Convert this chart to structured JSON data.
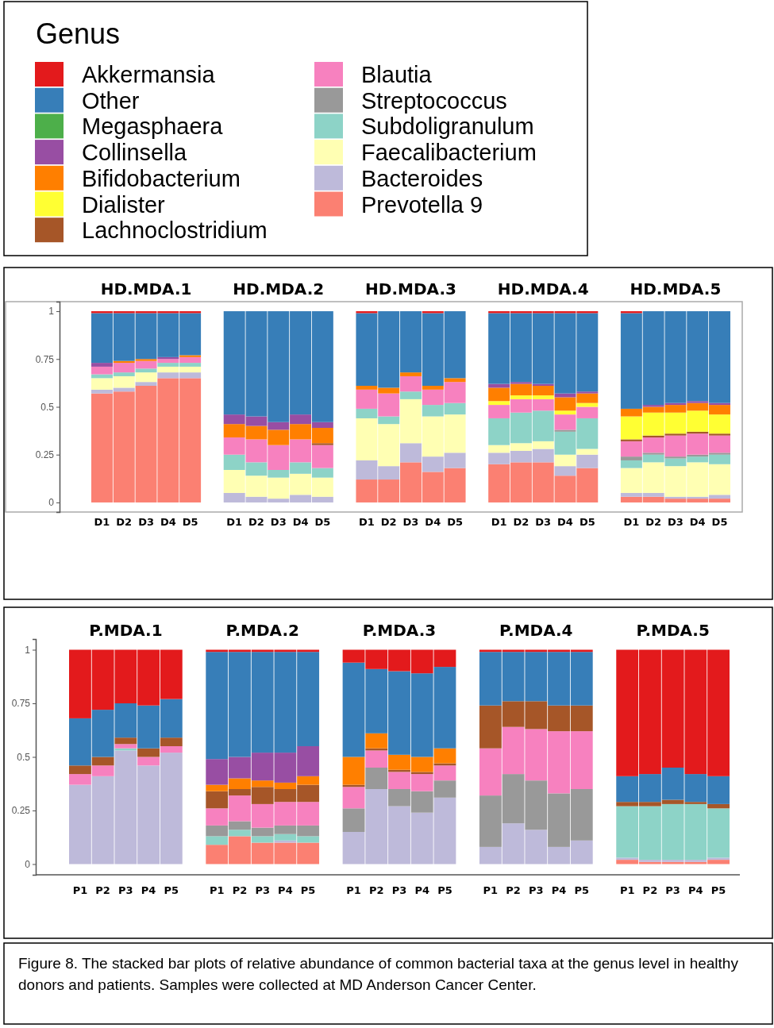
{
  "chart_data": [
    {
      "type": "bar",
      "categories": [
        "D1",
        "D2",
        "D3",
        "D4",
        "D5",
        null,
        "D1",
        "D2",
        "D3",
        "D4",
        "D5",
        null,
        "D1",
        "D2",
        "D3",
        "D4",
        "D5",
        null,
        "D1",
        "D2",
        "D3",
        "D4",
        "D5",
        null,
        "D1",
        "D2",
        "D3",
        "D4",
        "D5"
      ],
      "stacked": true,
      "ylim": [
        -0.05,
        1.05
      ],
      "yticks": [
        0,
        0.25,
        0.5,
        0.75,
        1
      ],
      "legend": "top",
      "legend_title": "Genus",
      "annotations": [
        "HD.MDA.1",
        "HD.MDA.2",
        "HD.MDA.3",
        "HD.MDA.4",
        "HD.MDA.5"
      ],
      "series": [
        {
          "name": "Prevotella 9",
          "color": "#fb8072",
          "values": [
            0.57,
            0.58,
            0.61,
            0.65,
            0.65,
            null,
            0,
            0,
            0,
            0,
            0,
            null,
            0.12,
            0.12,
            0.21,
            0.16,
            0.18,
            null,
            0.2,
            0.21,
            0.21,
            0.14,
            0.18,
            null,
            0.03,
            0.03,
            0.02,
            0.02,
            0.02
          ]
        },
        {
          "name": "Bacteroides",
          "color": "#bebada",
          "values": [
            0.02,
            0.02,
            0.02,
            0.03,
            0.03,
            null,
            0.05,
            0.03,
            0.02,
            0.04,
            0.03,
            null,
            0.1,
            0.07,
            0.1,
            0.08,
            0.08,
            null,
            0.06,
            0.06,
            0.07,
            0.05,
            0.07,
            null,
            0.02,
            0.02,
            0.01,
            0.01,
            0.02
          ]
        },
        {
          "name": "Faecalibacterium",
          "color": "#ffffb3",
          "values": [
            0.06,
            0.06,
            0.05,
            0.03,
            0.03,
            null,
            0.12,
            0.11,
            0.11,
            0.11,
            0.1,
            null,
            0.22,
            0.22,
            0.23,
            0.21,
            0.2,
            null,
            0.04,
            0.04,
            0.04,
            0.06,
            0.03,
            null,
            0.13,
            0.16,
            0.16,
            0.18,
            0.16
          ]
        },
        {
          "name": "Subdoligranulum",
          "color": "#8dd3c7",
          "values": [
            0.02,
            0.02,
            0.02,
            0.02,
            0.02,
            null,
            0.08,
            0.07,
            0.04,
            0.06,
            0.05,
            null,
            0.05,
            0.04,
            0.04,
            0.06,
            0.06,
            null,
            0.14,
            0.16,
            0.16,
            0.12,
            0.16,
            null,
            0.04,
            0.04,
            0.04,
            0.03,
            0.05
          ]
        },
        {
          "name": "Streptococcus",
          "color": "#999999",
          "values": [
            0,
            0,
            0,
            0,
            0,
            null,
            0,
            0,
            0,
            0,
            0,
            null,
            0,
            0,
            0,
            0,
            0,
            null,
            0,
            0,
            0,
            0.01,
            0,
            null,
            0.02,
            0.01,
            0.01,
            0.01,
            0.01
          ]
        },
        {
          "name": "Blautia",
          "color": "#f781bf",
          "values": [
            0.04,
            0.05,
            0.04,
            0.02,
            0.03,
            null,
            0.09,
            0.12,
            0.13,
            0.12,
            0.12,
            null,
            0.1,
            0.12,
            0.08,
            0.08,
            0.11,
            null,
            0.07,
            0.07,
            0.06,
            0.08,
            0.06,
            null,
            0.08,
            0.08,
            0.11,
            0.11,
            0.09
          ]
        },
        {
          "name": "Lachnoclostridium",
          "color": "#a65628",
          "values": [
            0,
            0,
            0,
            0,
            0,
            null,
            0,
            0,
            0,
            0,
            0.01,
            null,
            0,
            0,
            0,
            0,
            0,
            null,
            0,
            0,
            0,
            0,
            0,
            null,
            0.01,
            0.01,
            0.01,
            0.01,
            0.01
          ]
        },
        {
          "name": "Dialister",
          "color": "#ffff33",
          "values": [
            0,
            0,
            0,
            0,
            0,
            null,
            0,
            0,
            0,
            0,
            0,
            null,
            0,
            0,
            0,
            0,
            0,
            null,
            0.02,
            0.02,
            0.02,
            0.02,
            0.02,
            null,
            0.12,
            0.12,
            0.11,
            0.11,
            0.1
          ]
        },
        {
          "name": "Bifidobacterium",
          "color": "#ff7f00",
          "values": [
            0,
            0.01,
            0.01,
            0,
            0.01,
            null,
            0.07,
            0.07,
            0.08,
            0.08,
            0.08,
            null,
            0.02,
            0.03,
            0.02,
            0.02,
            0.02,
            null,
            0.07,
            0.06,
            0.05,
            0.07,
            0.05,
            null,
            0.04,
            0.03,
            0.04,
            0.04,
            0.05
          ]
        },
        {
          "name": "Collinsella",
          "color": "#984ea3",
          "values": [
            0.02,
            0,
            0,
            0.01,
            0,
            null,
            0.05,
            0.05,
            0.04,
            0.05,
            0.03,
            null,
            0,
            0,
            0,
            0,
            0,
            null,
            0.02,
            0.01,
            0.01,
            0.02,
            0.01,
            null,
            0,
            0.01,
            0.01,
            0.01,
            0.01
          ]
        },
        {
          "name": "Megasphaera",
          "color": "#4daf4a",
          "values": [
            0,
            0,
            0,
            0,
            0,
            null,
            0,
            0,
            0,
            0,
            0,
            null,
            0,
            0,
            0,
            0,
            0,
            null,
            0,
            0,
            0,
            0,
            0,
            null,
            0,
            0,
            0,
            0,
            0
          ]
        },
        {
          "name": "Other",
          "color": "#377eb8",
          "values": [
            0.26,
            0.25,
            0.24,
            0.23,
            0.22,
            null,
            0.54,
            0.55,
            0.58,
            0.54,
            0.58,
            null,
            0.38,
            0.4,
            0.32,
            0.38,
            0.35,
            null,
            0.37,
            0.36,
            0.37,
            0.42,
            0.41,
            null,
            0.5,
            0.49,
            0.48,
            0.47,
            0.48
          ]
        },
        {
          "name": "Akkermansia",
          "color": "#e31a1c",
          "values": [
            0.01,
            0.01,
            0.01,
            0.01,
            0.01,
            null,
            0,
            0,
            0,
            0,
            0,
            null,
            0.01,
            0,
            0,
            0.01,
            0,
            null,
            0.01,
            0.01,
            0.01,
            0.01,
            0.01,
            null,
            0.01,
            0,
            0,
            0,
            0
          ]
        }
      ]
    },
    {
      "type": "bar",
      "categories": [
        "P1",
        "P2",
        "P3",
        "P4",
        "P5",
        null,
        "P1",
        "P2",
        "P3",
        "P4",
        "P5",
        null,
        "P1",
        "P2",
        "P3",
        "P4",
        "P5",
        null,
        "P1",
        "P2",
        "P3",
        "P4",
        "P5",
        null,
        "P1",
        "P2",
        "P3",
        "P4",
        "P5"
      ],
      "stacked": true,
      "ylim": [
        -0.05,
        1.05
      ],
      "yticks": [
        0,
        0.25,
        0.5,
        0.75,
        1
      ],
      "annotations": [
        "P.MDA.1",
        "P.MDA.2",
        "P.MDA.3",
        "P.MDA.4",
        "P.MDA.5",
        "Figure 8. The stacked bar plots of relative abundance of common bacterial taxa at the genus level in healthy donors and patients. Samples were collected at MD Anderson Cancer Center."
      ],
      "series": [
        {
          "color": "#fb8072",
          "values": [
            0,
            0,
            0,
            0,
            0,
            null,
            0.09,
            0.13,
            0.1,
            0.1,
            0.1,
            null,
            0,
            0,
            0,
            0,
            0,
            null,
            0,
            0,
            0,
            0,
            0,
            null,
            0.02,
            0.01,
            0.01,
            0.01,
            0.02
          ]
        },
        {
          "color": "#bebada",
          "values": [
            0.37,
            0.41,
            0.53,
            0.46,
            0.52,
            null,
            0,
            0,
            0,
            0.01,
            0,
            null,
            0.15,
            0.35,
            0.27,
            0.24,
            0.31,
            null,
            0.08,
            0.19,
            0.16,
            0.08,
            0.11,
            null,
            0.01,
            0.01,
            0.01,
            0.01,
            0.01
          ]
        },
        {
          "color": "#8dd3c7",
          "values": [
            0,
            0,
            0.01,
            0,
            0,
            null,
            0.04,
            0.03,
            0.03,
            0.03,
            0.03,
            null,
            0,
            0,
            0,
            0,
            0,
            null,
            0,
            0,
            0,
            0,
            0,
            null,
            0.24,
            0.25,
            0.26,
            0.26,
            0.23
          ]
        },
        {
          "color": "#999999",
          "values": [
            0,
            0,
            0,
            0,
            0,
            null,
            0.05,
            0.04,
            0.04,
            0.04,
            0.05,
            null,
            0.11,
            0.1,
            0.08,
            0.1,
            0.08,
            null,
            0.24,
            0.23,
            0.23,
            0.25,
            0.24,
            null,
            0,
            0,
            0,
            0,
            0
          ]
        },
        {
          "color": "#f781bf",
          "values": [
            0.05,
            0.05,
            0.02,
            0.04,
            0.03,
            null,
            0.08,
            0.12,
            0.11,
            0.11,
            0.11,
            null,
            0.1,
            0.08,
            0.08,
            0.08,
            0.07,
            null,
            0.22,
            0.22,
            0.24,
            0.29,
            0.27,
            null,
            0,
            0,
            0,
            0,
            0
          ]
        },
        {
          "color": "#a65628",
          "values": [
            0.04,
            0.04,
            0.03,
            0.04,
            0.04,
            null,
            0.08,
            0.03,
            0.08,
            0.06,
            0.08,
            null,
            0.01,
            0.01,
            0.01,
            0.01,
            0.01,
            null,
            0.2,
            0.12,
            0.13,
            0.12,
            0.12,
            null,
            0.02,
            0.02,
            0.02,
            0.01,
            0.02
          ]
        },
        {
          "color": "#ff7f00",
          "values": [
            0,
            0,
            0,
            0,
            0,
            null,
            0.03,
            0.05,
            0.03,
            0.03,
            0.04,
            null,
            0.13,
            0.07,
            0.07,
            0.07,
            0.07,
            null,
            0,
            0,
            0,
            0,
            0,
            null,
            0,
            0,
            0,
            0,
            0
          ]
        },
        {
          "color": "#984ea3",
          "values": [
            0,
            0,
            0,
            0,
            0,
            null,
            0.12,
            0.1,
            0.13,
            0.14,
            0.14,
            null,
            0,
            0,
            0,
            0,
            0,
            null,
            0,
            0,
            0,
            0,
            0,
            null,
            0,
            0,
            0,
            0,
            0
          ]
        },
        {
          "color": "#377eb8",
          "values": [
            0.22,
            0.22,
            0.16,
            0.2,
            0.18,
            null,
            0.5,
            0.49,
            0.47,
            0.47,
            0.44,
            null,
            0.44,
            0.3,
            0.39,
            0.39,
            0.38,
            null,
            0.25,
            0.23,
            0.23,
            0.25,
            0.25,
            null,
            0.12,
            0.13,
            0.15,
            0.13,
            0.13
          ]
        },
        {
          "color": "#e31a1c",
          "values": [
            0.32,
            0.28,
            0.25,
            0.26,
            0.23,
            null,
            0.01,
            0.01,
            0.01,
            0.01,
            0.01,
            null,
            0.06,
            0.09,
            0.1,
            0.11,
            0.08,
            null,
            0.01,
            0.01,
            0.01,
            0.01,
            0.01,
            null,
            0.59,
            0.58,
            0.55,
            0.58,
            0.59
          ]
        }
      ]
    }
  ]
}
